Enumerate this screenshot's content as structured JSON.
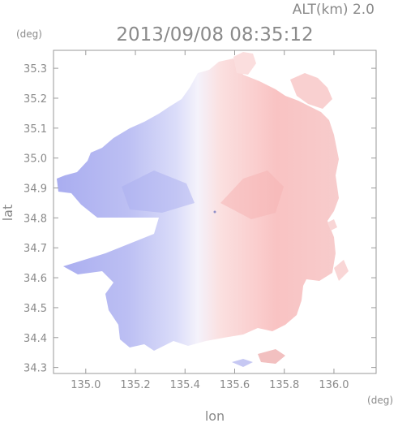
{
  "chart_data": {
    "type": "heatmap",
    "title": "2013/09/08 08:35:12",
    "subtitle": "ALT(km) 2.0",
    "xlabel": "lon",
    "ylabel": "lat",
    "x_unit": "(deg)",
    "y_unit": "(deg)",
    "xlim": [
      134.87,
      136.17
    ],
    "ylim": [
      34.28,
      35.36
    ],
    "x_ticks": [
      135.0,
      135.2,
      135.4,
      135.6,
      135.8,
      136.0
    ],
    "x_tick_labels": [
      "135.0",
      "135.2",
      "135.4",
      "135.6",
      "135.8",
      "136.0"
    ],
    "y_ticks": [
      34.3,
      34.4,
      34.5,
      34.6,
      34.7,
      34.8,
      34.9,
      35.0,
      35.1,
      35.2,
      35.3
    ],
    "y_tick_labels": [
      "34.3",
      "34.4",
      "34.5",
      "34.6",
      "34.7",
      "34.8",
      "34.9",
      "35.0",
      "35.1",
      "35.2",
      "35.3"
    ],
    "radar_center": {
      "lon": 135.52,
      "lat": 34.82
    },
    "grid": false,
    "colors": {
      "approaching": "#b9bcf4",
      "receding": "#f8bcbc",
      "axis": "#9a9a9a",
      "text": "#8a8a8a"
    }
  }
}
